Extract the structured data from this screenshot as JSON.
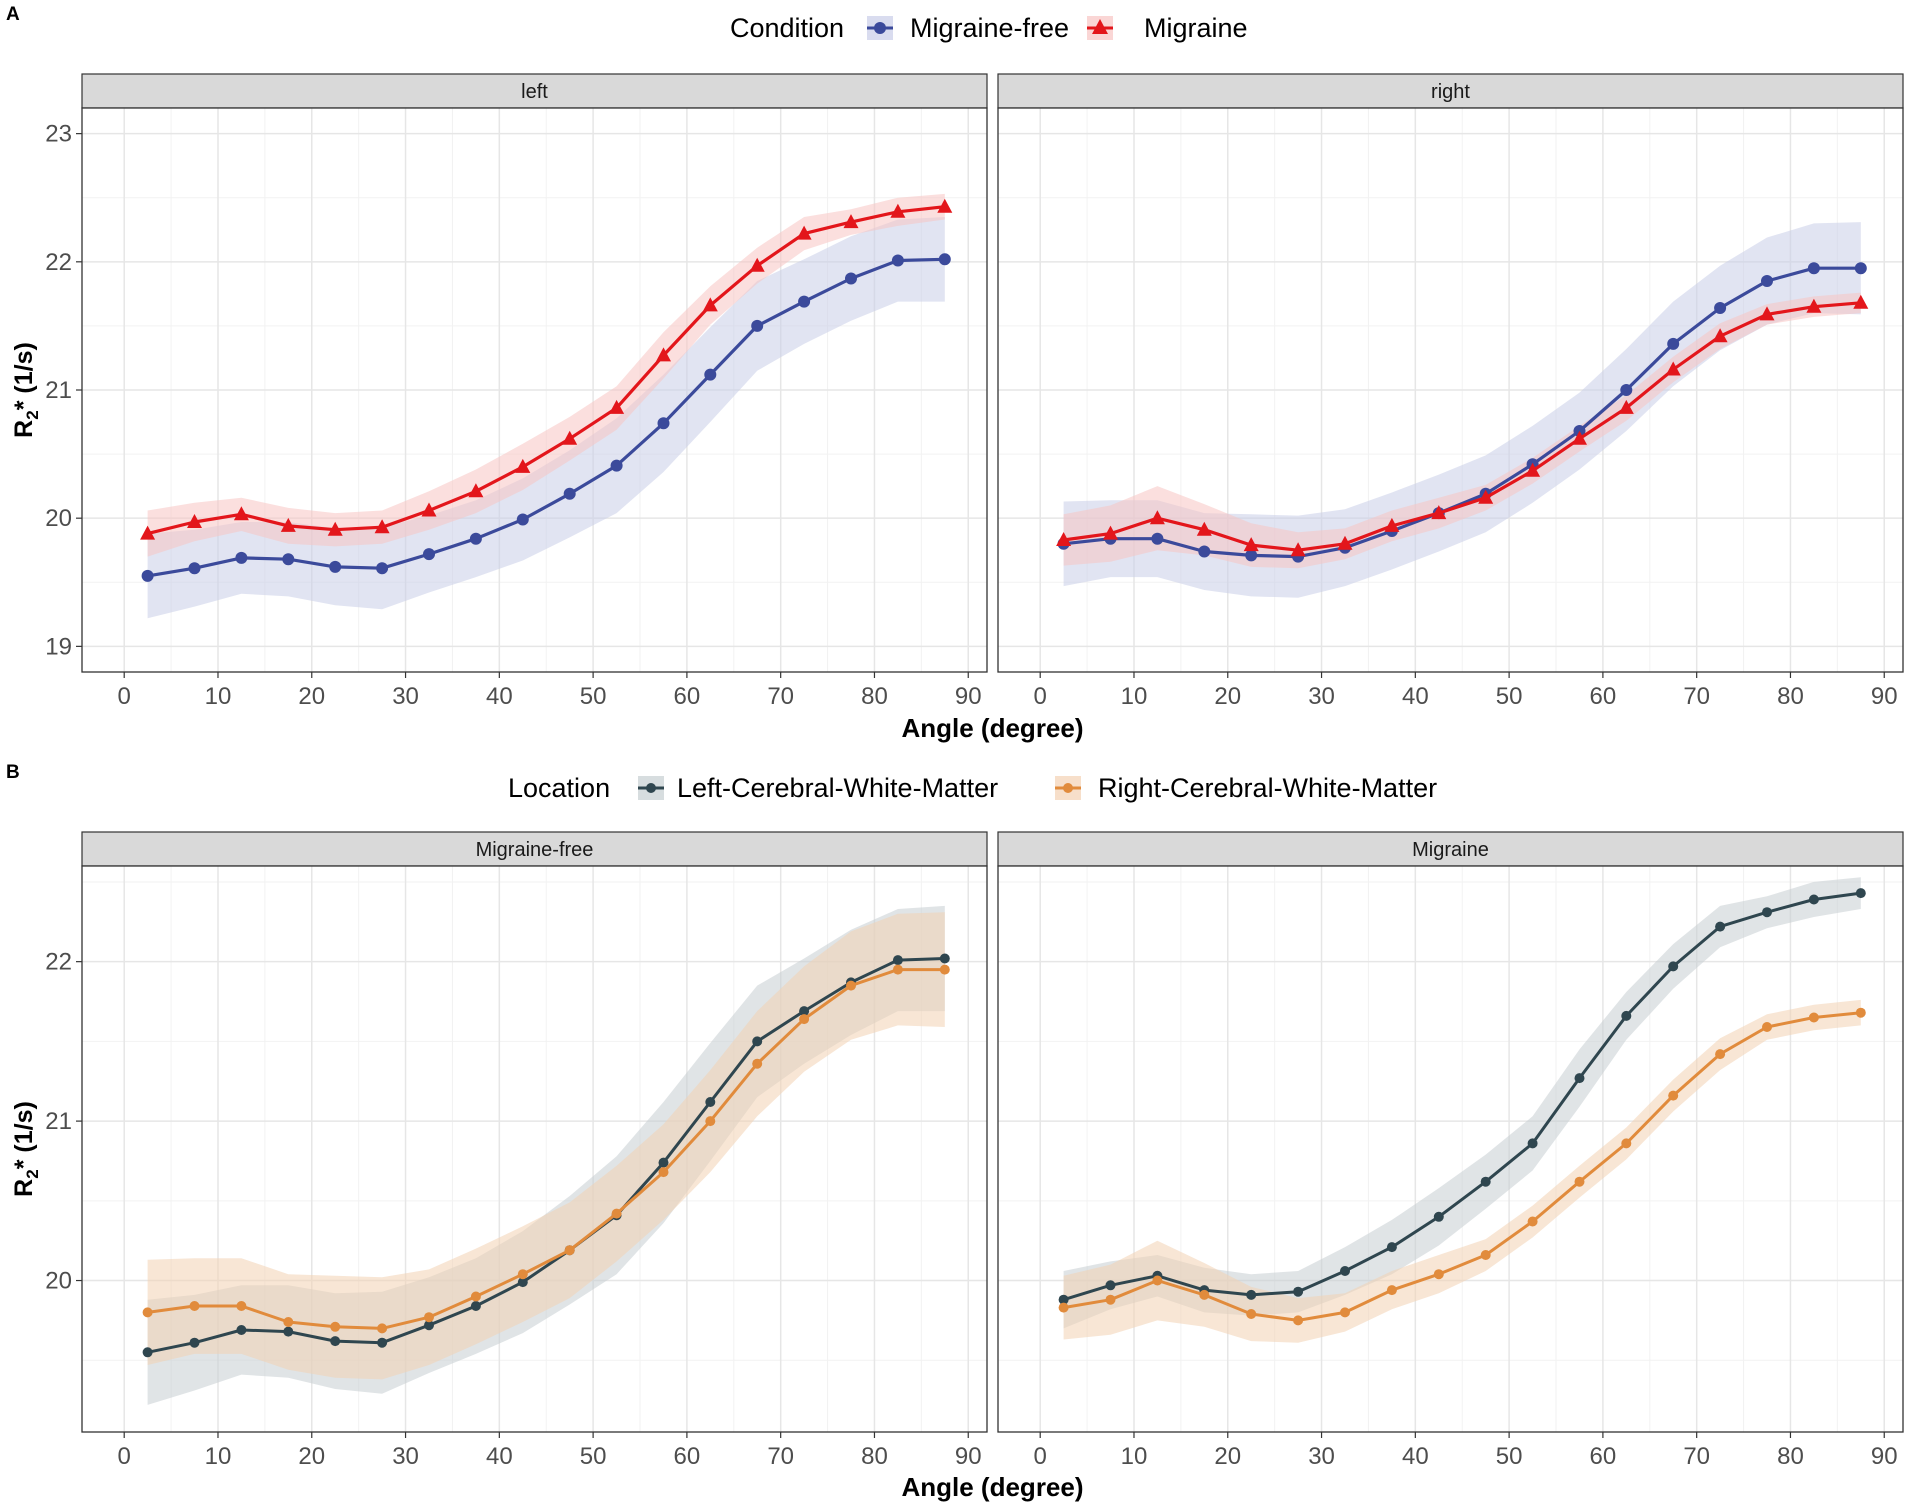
{
  "figure": {
    "panel_a_letter": "A",
    "panel_b_letter": "B",
    "xlabel": "Angle (degree)",
    "ylabel_main": "R",
    "ylabel_sub": "2",
    "ylabel_rest": "* (1/s)"
  },
  "chart_data": [
    {
      "id": "A",
      "type": "line",
      "legend_title": "Condition",
      "legend_position": "top",
      "xlabel": "Angle (degree)",
      "ylabel": "R2* (1/s)",
      "xlim": [
        -4.5,
        92
      ],
      "ylim": [
        18.8,
        23.2
      ],
      "xticks": [
        0,
        10,
        20,
        30,
        40,
        50,
        60,
        70,
        80,
        90
      ],
      "yticks": [
        19,
        20,
        21,
        22,
        23
      ],
      "x": [
        2.5,
        7.5,
        12.5,
        17.5,
        22.5,
        27.5,
        32.5,
        37.5,
        42.5,
        47.5,
        52.5,
        57.5,
        62.5,
        67.5,
        72.5,
        77.5,
        82.5,
        87.5
      ],
      "series": [
        {
          "name": "Migraine-free",
          "color": "#3b4a9b",
          "band_color": "#c9cde8",
          "marker": "circle"
        },
        {
          "name": "Migraine",
          "color": "#e3161b",
          "band_color": "#f8c4c3",
          "marker": "triangle"
        }
      ],
      "facets": [
        {
          "label": "left",
          "values": {
            "Migraine-free": [
              19.55,
              19.61,
              19.69,
              19.68,
              19.62,
              19.61,
              19.72,
              19.84,
              19.99,
              20.19,
              20.41,
              20.74,
              21.12,
              21.5,
              21.69,
              21.87,
              22.01,
              22.02
            ],
            "Migraine": [
              19.88,
              19.97,
              20.03,
              19.94,
              19.91,
              19.93,
              20.06,
              20.21,
              20.4,
              20.62,
              20.86,
              21.27,
              21.66,
              21.97,
              22.22,
              22.31,
              22.39,
              22.43
            ]
          },
          "band_halfwidth": {
            "Migraine-free": [
              0.33,
              0.3,
              0.28,
              0.29,
              0.3,
              0.32,
              0.3,
              0.3,
              0.32,
              0.34,
              0.37,
              0.38,
              0.37,
              0.35,
              0.33,
              0.33,
              0.32,
              0.33
            ],
            "Migraine": [
              0.18,
              0.15,
              0.13,
              0.14,
              0.13,
              0.13,
              0.15,
              0.17,
              0.18,
              0.17,
              0.17,
              0.18,
              0.15,
              0.14,
              0.13,
              0.1,
              0.11,
              0.1
            ]
          }
        },
        {
          "label": "right",
          "values": {
            "Migraine-free": [
              19.8,
              19.84,
              19.84,
              19.74,
              19.71,
              19.7,
              19.77,
              19.9,
              20.04,
              20.19,
              20.42,
              20.68,
              21.0,
              21.36,
              21.64,
              21.85,
              21.95,
              21.95
            ],
            "Migraine": [
              19.83,
              19.88,
              20.0,
              19.91,
              19.79,
              19.75,
              19.8,
              19.94,
              20.04,
              20.16,
              20.37,
              20.62,
              20.86,
              21.16,
              21.42,
              21.59,
              21.65,
              21.68
            ]
          },
          "band_halfwidth": {
            "Migraine-free": [
              0.33,
              0.3,
              0.3,
              0.3,
              0.32,
              0.32,
              0.3,
              0.3,
              0.3,
              0.3,
              0.3,
              0.3,
              0.32,
              0.33,
              0.33,
              0.34,
              0.35,
              0.36
            ],
            "Migraine": [
              0.2,
              0.22,
              0.25,
              0.2,
              0.17,
              0.14,
              0.12,
              0.12,
              0.12,
              0.1,
              0.1,
              0.1,
              0.1,
              0.1,
              0.1,
              0.08,
              0.08,
              0.08
            ]
          }
        }
      ]
    },
    {
      "id": "B",
      "type": "line",
      "legend_title": "Location",
      "legend_position": "top",
      "xlabel": "Angle (degree)",
      "ylabel": "R2* (1/s)",
      "xlim": [
        -4.5,
        92
      ],
      "ylim": [
        19.05,
        22.6
      ],
      "xticks": [
        0,
        10,
        20,
        30,
        40,
        50,
        60,
        70,
        80,
        90
      ],
      "yticks": [
        20,
        21,
        22
      ],
      "x": [
        2.5,
        7.5,
        12.5,
        17.5,
        22.5,
        27.5,
        32.5,
        37.5,
        42.5,
        47.5,
        52.5,
        57.5,
        62.5,
        67.5,
        72.5,
        77.5,
        82.5,
        87.5
      ],
      "series": [
        {
          "name": "Left-Cerebral-White-Matter",
          "color": "#2f464f",
          "band_color": "#c6ced2",
          "marker": "circle"
        },
        {
          "name": "Right-Cerebral-White-Matter",
          "color": "#e18b3c",
          "band_color": "#f3d2b3",
          "marker": "circle"
        }
      ],
      "facets": [
        {
          "label": "Migraine-free",
          "values": {
            "Left-Cerebral-White-Matter": [
              19.55,
              19.61,
              19.69,
              19.68,
              19.62,
              19.61,
              19.72,
              19.84,
              19.99,
              20.19,
              20.41,
              20.74,
              21.12,
              21.5,
              21.69,
              21.87,
              22.01,
              22.02
            ],
            "Right-Cerebral-White-Matter": [
              19.8,
              19.84,
              19.84,
              19.74,
              19.71,
              19.7,
              19.77,
              19.9,
              20.04,
              20.19,
              20.42,
              20.68,
              21.0,
              21.36,
              21.64,
              21.85,
              21.95,
              21.95
            ]
          },
          "band_halfwidth": {
            "Left-Cerebral-White-Matter": [
              0.33,
              0.3,
              0.28,
              0.29,
              0.3,
              0.32,
              0.3,
              0.3,
              0.32,
              0.34,
              0.37,
              0.38,
              0.37,
              0.35,
              0.33,
              0.33,
              0.32,
              0.33
            ],
            "Right-Cerebral-White-Matter": [
              0.33,
              0.3,
              0.3,
              0.3,
              0.32,
              0.32,
              0.3,
              0.3,
              0.3,
              0.3,
              0.3,
              0.3,
              0.32,
              0.33,
              0.33,
              0.34,
              0.35,
              0.36
            ]
          }
        },
        {
          "label": "Migraine",
          "values": {
            "Left-Cerebral-White-Matter": [
              19.88,
              19.97,
              20.03,
              19.94,
              19.91,
              19.93,
              20.06,
              20.21,
              20.4,
              20.62,
              20.86,
              21.27,
              21.66,
              21.97,
              22.22,
              22.31,
              22.39,
              22.43
            ],
            "Right-Cerebral-White-Matter": [
              19.83,
              19.88,
              20.0,
              19.91,
              19.79,
              19.75,
              19.8,
              19.94,
              20.04,
              20.16,
              20.37,
              20.62,
              20.86,
              21.16,
              21.42,
              21.59,
              21.65,
              21.68
            ]
          },
          "band_halfwidth": {
            "Left-Cerebral-White-Matter": [
              0.18,
              0.15,
              0.13,
              0.14,
              0.13,
              0.13,
              0.15,
              0.17,
              0.18,
              0.17,
              0.17,
              0.18,
              0.15,
              0.14,
              0.13,
              0.1,
              0.11,
              0.1
            ],
            "Right-Cerebral-White-Matter": [
              0.2,
              0.22,
              0.25,
              0.2,
              0.17,
              0.14,
              0.12,
              0.12,
              0.12,
              0.1,
              0.1,
              0.1,
              0.1,
              0.1,
              0.1,
              0.08,
              0.08,
              0.08
            ]
          }
        }
      ]
    }
  ]
}
